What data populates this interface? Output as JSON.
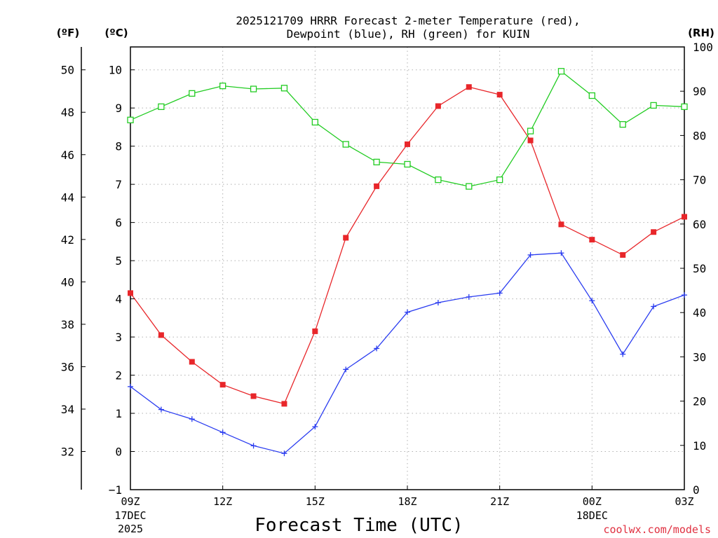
{
  "chart_data": {
    "type": "line",
    "title_line1": "2025121709 HRRR Forecast 2-meter Temperature (red),",
    "title_line2": "Dewpoint (blue), RH (green) for KUIN",
    "xlabel": "Forecast Time (UTC)",
    "units": {
      "fahrenheit": "(ºF)",
      "celsius": "(ºC)",
      "rh": "(RH)"
    },
    "x_ticks": [
      {
        "hour": 0,
        "label": "09Z",
        "sub1": "17DEC",
        "sub2": "2025"
      },
      {
        "hour": 3,
        "label": "12Z",
        "sub1": "",
        "sub2": ""
      },
      {
        "hour": 6,
        "label": "15Z",
        "sub1": "",
        "sub2": ""
      },
      {
        "hour": 9,
        "label": "18Z",
        "sub1": "",
        "sub2": ""
      },
      {
        "hour": 12,
        "label": "21Z",
        "sub1": "",
        "sub2": ""
      },
      {
        "hour": 15,
        "label": "00Z",
        "sub1": "18DEC",
        "sub2": ""
      },
      {
        "hour": 18,
        "label": "03Z",
        "sub1": "",
        "sub2": ""
      }
    ],
    "xlim": [
      0,
      18
    ],
    "ylim_c": [
      -1,
      10.6
    ],
    "ylim_rh": [
      0,
      100
    ],
    "c_ticks": [
      "-1",
      "0",
      "1",
      "2",
      "3",
      "4",
      "5",
      "6",
      "7",
      "8",
      "9",
      "10"
    ],
    "f_ticks": [
      "32",
      "34",
      "36",
      "38",
      "40",
      "42",
      "44",
      "46",
      "48",
      "50"
    ],
    "rh_ticks": [
      "0",
      "10",
      "20",
      "30",
      "40",
      "50",
      "60",
      "70",
      "80",
      "90",
      "100"
    ],
    "grid": true,
    "series": [
      {
        "name": "Temperature (red)",
        "color": "#e8262a",
        "marker": "filled-square",
        "axis": "celsius",
        "values": [
          4.15,
          3.05,
          2.35,
          1.75,
          1.45,
          1.25,
          3.15,
          5.6,
          6.95,
          8.05,
          9.05,
          9.55,
          9.35,
          8.15,
          5.95,
          5.55,
          5.15,
          5.75,
          6.15
        ]
      },
      {
        "name": "Dewpoint (blue)",
        "color": "#2a3cf0",
        "marker": "plus",
        "axis": "celsius",
        "values": [
          1.7,
          1.1,
          0.85,
          0.5,
          0.15,
          -0.05,
          0.65,
          2.15,
          2.7,
          3.65,
          3.9,
          4.05,
          4.15,
          5.15,
          5.2,
          3.95,
          2.55,
          3.8,
          4.1
        ]
      },
      {
        "name": "RH (green)",
        "color": "#22cc22",
        "marker": "open-square",
        "axis": "rh",
        "values": [
          83.5,
          86.5,
          89.5,
          91.2,
          90.5,
          90.7,
          83.0,
          78.0,
          74.0,
          73.5,
          70.0,
          68.5,
          70.0,
          81.0,
          94.5,
          89.0,
          82.5,
          86.8,
          86.5
        ]
      }
    ]
  },
  "footer": {
    "credit": "coolwx.com/models"
  }
}
